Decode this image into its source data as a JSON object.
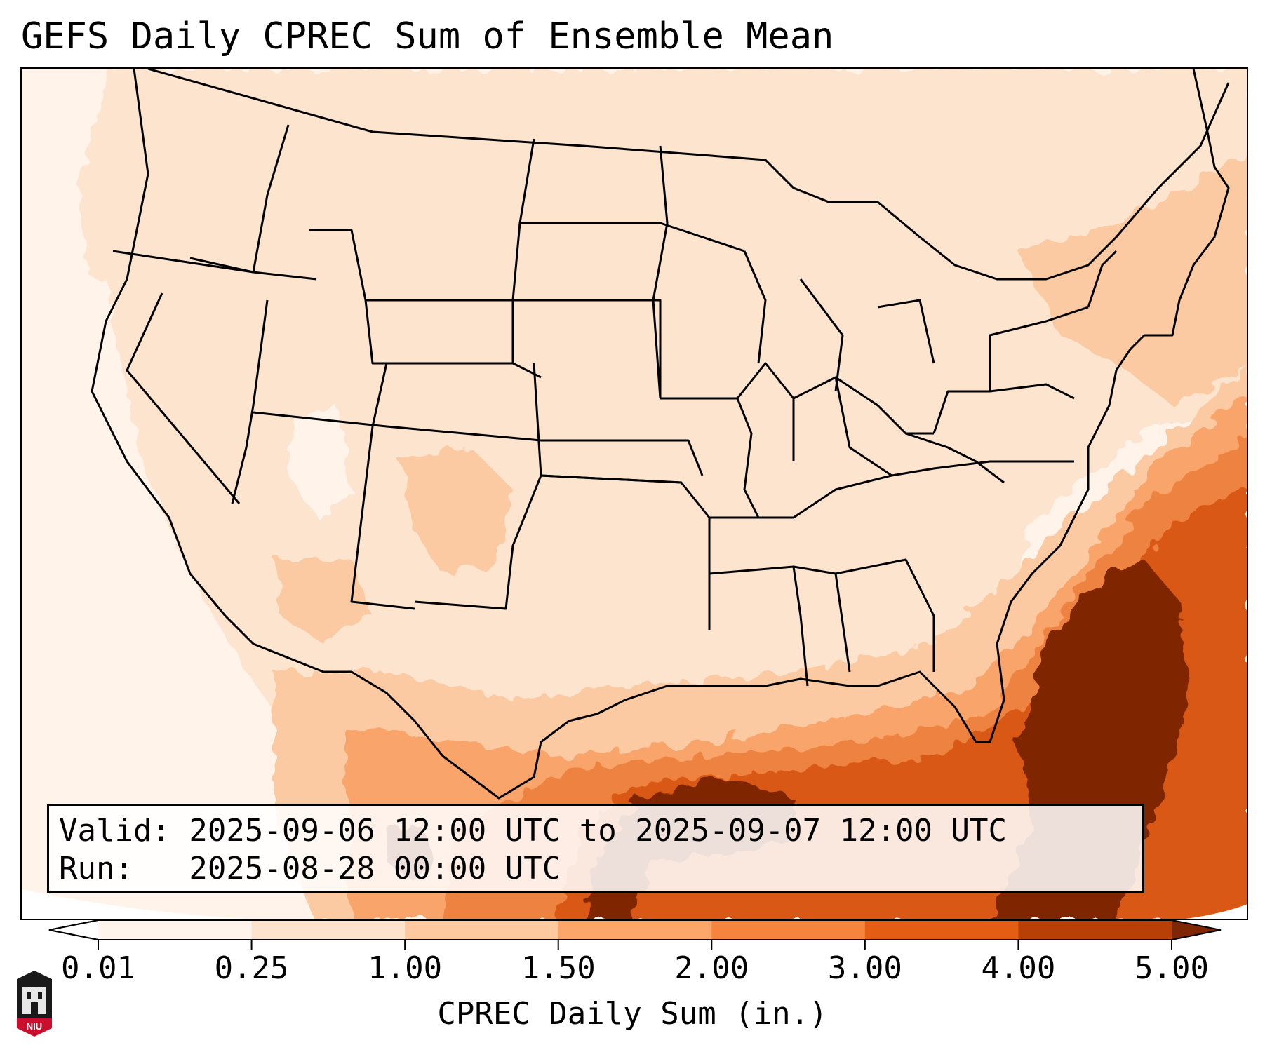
{
  "title": "GEFS Daily CPREC Sum of Ensemble Mean",
  "info": {
    "valid_line": "Valid: 2025-09-06 12:00 UTC to 2025-09-07 12:00 UTC",
    "run_line": "Run:   2025-08-28 00:00 UTC"
  },
  "colorbar": {
    "label": "CPREC Daily Sum (in.)",
    "ticks": [
      "0.01",
      "0.25",
      "1.00",
      "1.50",
      "2.00",
      "3.00",
      "4.00",
      "5.00"
    ],
    "colors": [
      "#fff4ec",
      "#fde3cc",
      "#fcc9a0",
      "#fca66a",
      "#f6843c",
      "#e35e12",
      "#b84006"
    ],
    "over_color": "#7f2704",
    "under_color": "#ffffff"
  },
  "map": {
    "region": "CONUS",
    "precip_colors": {
      "trace": "#fff3ea",
      "light": "#fde4cf",
      "moderate": "#fbcaa2",
      "heavy": "#f8a46a",
      "very_heavy": "#ee8240",
      "intense": "#d95914",
      "extreme": "#7f2704"
    }
  },
  "logo": {
    "text": "NIU",
    "color": "#c8102e"
  }
}
